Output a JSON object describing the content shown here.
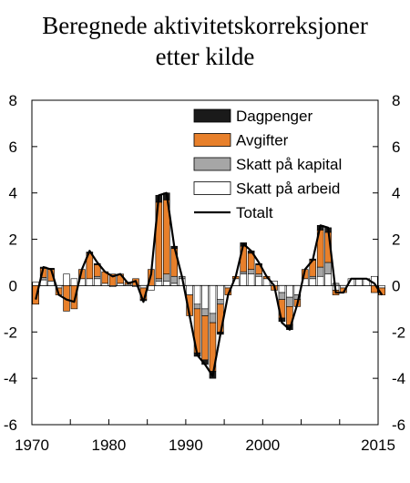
{
  "chart_data": {
    "type": "bar",
    "title_line1": "Beregnede aktivitetskorreksjoner",
    "title_line2": "etter kilde",
    "xlabel": "",
    "ylabel": "",
    "xlim": [
      1970,
      2015
    ],
    "ylim": [
      -6,
      8
    ],
    "yticks": [
      "8",
      "6",
      "4",
      "2",
      "0",
      "-2",
      "-4",
      "-6"
    ],
    "ytick_values": [
      8,
      6,
      4,
      2,
      0,
      -2,
      -4,
      -6
    ],
    "xticks": [
      "1970",
      "1980",
      "1990",
      "2000",
      "2015"
    ],
    "xtick_values": [
      1970,
      1980,
      1990,
      2000,
      2015
    ],
    "x": [
      "1970",
      "1971",
      "1972",
      "1973",
      "1974",
      "1975",
      "1976",
      "1977",
      "1978",
      "1979",
      "1980",
      "1981",
      "1982",
      "1983",
      "1984",
      "1985",
      "1986",
      "1987",
      "1988",
      "1989",
      "1990",
      "1991",
      "1992",
      "1993",
      "1994",
      "1995",
      "1996",
      "1997",
      "1998",
      "1999",
      "2000",
      "2001",
      "2002",
      "2003",
      "2004",
      "2005",
      "2006",
      "2007",
      "2008",
      "2009",
      "2010",
      "2011",
      "2012",
      "2013",
      "2014",
      "2015"
    ],
    "series": [
      {
        "name": "Skatt på arbeid",
        "color": "#ffffff",
        "values": [
          0.15,
          0.25,
          0.2,
          -0.1,
          0.5,
          0.3,
          0.3,
          0.3,
          0.3,
          0.1,
          -0.05,
          0.1,
          0.05,
          -0.05,
          -0.1,
          -0.2,
          0.2,
          0.2,
          0.1,
          0.3,
          -0.4,
          -0.8,
          -1.0,
          -1.2,
          -0.6,
          -0.1,
          0.3,
          0.5,
          0.5,
          0.4,
          0.3,
          0.2,
          -0.3,
          -0.5,
          -0.4,
          0.3,
          0.3,
          0.4,
          0.5,
          -0.2,
          -0.1,
          0.3,
          0.3,
          0.3,
          0.4,
          -0.1
        ]
      },
      {
        "name": "Skatt på kapital",
        "color": "#a6a6a6",
        "values": [
          0.0,
          0.1,
          0.0,
          0.0,
          0.0,
          0.0,
          0.0,
          0.0,
          0.1,
          0.0,
          0.0,
          0.0,
          0.0,
          0.0,
          0.0,
          0.0,
          0.1,
          0.3,
          0.3,
          0.1,
          0.0,
          -0.2,
          -0.3,
          -0.4,
          -0.2,
          0.0,
          0.0,
          0.1,
          0.2,
          0.1,
          0.0,
          0.0,
          -0.3,
          -0.4,
          -0.2,
          0.0,
          0.1,
          0.4,
          0.5,
          0.1,
          0.0,
          0.0,
          0.0,
          0.0,
          0.0,
          0.0
        ]
      },
      {
        "name": "Avgifter",
        "color": "#e8802b",
        "values": [
          -0.8,
          0.4,
          0.5,
          -0.3,
          -1.1,
          -1.0,
          0.4,
          1.1,
          0.5,
          0.5,
          0.5,
          0.4,
          0.1,
          0.3,
          -0.5,
          0.7,
          3.3,
          3.2,
          1.2,
          0.0,
          -0.9,
          -1.9,
          -1.9,
          -2.1,
          -1.2,
          -0.3,
          0.1,
          1.1,
          0.7,
          0.4,
          0.1,
          -0.2,
          -0.8,
          -0.8,
          -0.3,
          0.4,
          0.7,
          1.6,
          1.3,
          -0.2,
          -0.2,
          0.0,
          0.0,
          0.0,
          -0.3,
          -0.3
        ]
      },
      {
        "name": "Dagpenger",
        "color": "#1a1a1a",
        "values": [
          0.0,
          0.05,
          0.05,
          0.0,
          0.0,
          0.0,
          0.0,
          0.05,
          0.05,
          0.0,
          0.0,
          0.0,
          0.0,
          0.0,
          -0.05,
          0.0,
          0.3,
          0.3,
          0.1,
          0.0,
          0.0,
          -0.15,
          -0.2,
          -0.3,
          -0.1,
          0.0,
          0.0,
          0.15,
          0.1,
          0.05,
          0.0,
          0.0,
          -0.15,
          -0.2,
          0.0,
          0.0,
          0.05,
          0.2,
          0.2,
          0.0,
          0.0,
          0.0,
          0.0,
          0.0,
          0.0,
          0.0
        ]
      }
    ],
    "total": {
      "name": "Totalt",
      "color": "#000000",
      "values": [
        -0.6,
        0.8,
        0.7,
        -0.4,
        -0.6,
        -0.7,
        0.7,
        1.5,
        1.0,
        0.6,
        0.4,
        0.5,
        0.1,
        0.2,
        -0.7,
        0.5,
        3.9,
        4.0,
        1.7,
        0.4,
        -1.3,
        -3.0,
        -3.4,
        -3.9,
        -2.1,
        -0.4,
        0.4,
        1.8,
        1.5,
        1.0,
        0.4,
        0.0,
        -1.6,
        -1.9,
        -0.8,
        0.7,
        1.1,
        2.6,
        2.5,
        -0.3,
        -0.3,
        0.3,
        0.3,
        0.3,
        0.1,
        -0.4
      ]
    },
    "legend": [
      {
        "label": "Dagpenger",
        "kind": "box",
        "color": "#1a1a1a"
      },
      {
        "label": "Avgifter",
        "kind": "box",
        "color": "#e8802b"
      },
      {
        "label": "Skatt på kapital",
        "kind": "box",
        "color": "#a6a6a6"
      },
      {
        "label": "Skatt på arbeid",
        "kind": "box",
        "color": "#ffffff"
      },
      {
        "label": "Totalt",
        "kind": "line",
        "color": "#000000"
      }
    ],
    "legend_position": "top-right",
    "grid": false
  }
}
